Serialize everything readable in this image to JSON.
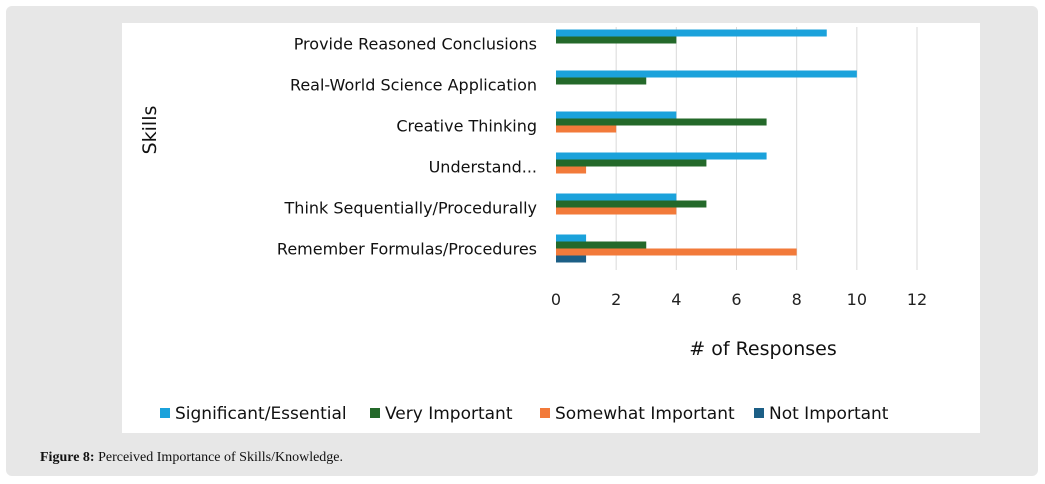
{
  "figure": {
    "label": "Figure 8:",
    "text": " Perceived Importance of Skills/Knowledge."
  },
  "colors": {
    "significant": "#1ba2db",
    "very": "#24692a",
    "somewhat": "#f27a3a",
    "not": "#1c5f86",
    "grid": "#d9d9d9"
  },
  "chart_data": {
    "type": "bar",
    "orientation": "horizontal",
    "title": "",
    "xlabel": "# of Responses",
    "ylabel": "Skills",
    "xlim": [
      0,
      12
    ],
    "xticks": [
      0,
      2,
      4,
      6,
      8,
      10,
      12
    ],
    "categories": [
      "Provide Reasoned Conclusions",
      "Real-World Science Application",
      "Creative Thinking",
      "Understand...",
      "Think Sequentially/Procedurally",
      "Remember Formulas/Procedures"
    ],
    "series": [
      {
        "name": "Significant/Essential",
        "color_key": "significant",
        "values": [
          9,
          10,
          4,
          7,
          4,
          1
        ]
      },
      {
        "name": "Very Important",
        "color_key": "very",
        "values": [
          4,
          3,
          7,
          5,
          5,
          3
        ]
      },
      {
        "name": "Somewhat Important",
        "color_key": "somewhat",
        "values": [
          0,
          0,
          2,
          1,
          4,
          8
        ]
      },
      {
        "name": "Not Important",
        "color_key": "not",
        "values": [
          0,
          0,
          0,
          0,
          0,
          1
        ]
      }
    ],
    "legend_position": "bottom"
  }
}
